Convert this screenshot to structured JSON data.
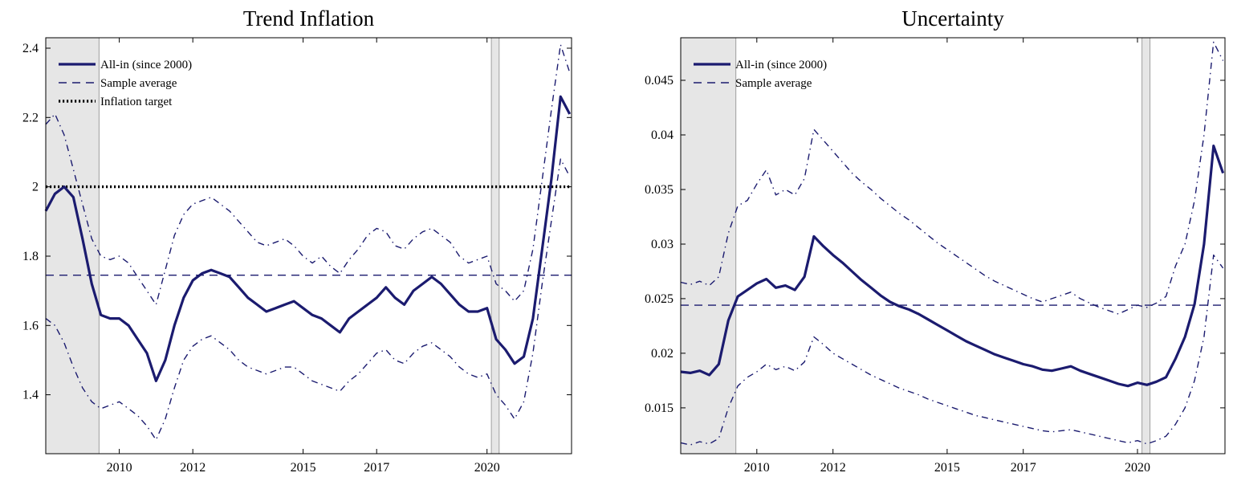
{
  "figure": {
    "background": "#ffffff",
    "accent_color": "#1b1b6f",
    "target_line_color": "#000000",
    "recession_fill": "#e6e6e6",
    "recession_edge": "#9e9e9e"
  },
  "chart_data": [
    {
      "type": "line",
      "title": "Trend Inflation",
      "xlim": [
        2008,
        2022.3
      ],
      "ylim": [
        1.23,
        2.43
      ],
      "grid": false,
      "legend_position": "top-left-inside",
      "xticks": [
        {
          "v": 2010,
          "label": "2010"
        },
        {
          "v": 2012,
          "label": "2012"
        },
        {
          "v": 2015,
          "label": "2015"
        },
        {
          "v": 2017,
          "label": "2017"
        },
        {
          "v": 2020,
          "label": "2020"
        }
      ],
      "yticks": [
        {
          "v": 1.4,
          "label": "1.4"
        },
        {
          "v": 1.6,
          "label": "1.6"
        },
        {
          "v": 1.8,
          "label": "1.8"
        },
        {
          "v": 2.0,
          "label": "2"
        },
        {
          "v": 2.2,
          "label": "2.2"
        },
        {
          "v": 2.4,
          "label": "2.4"
        }
      ],
      "recessions": [
        {
          "from": 2008.0,
          "to": 2009.45
        },
        {
          "from": 2020.12,
          "to": 2020.33
        }
      ],
      "recession_fill": "#e6e6e6",
      "recession_edge": "#9e9e9e",
      "hlines": [
        {
          "name": "sample-average",
          "label": "Sample average",
          "value": 1.745,
          "style": "dashed",
          "color": "#1b1b6f",
          "width": 1.4
        },
        {
          "name": "inflation-target",
          "label": "Inflation target",
          "value": 2.0,
          "style": "dotted",
          "color": "#000000",
          "width": 3.4
        }
      ],
      "x": [
        2008.0,
        2008.25,
        2008.5,
        2008.75,
        2009.0,
        2009.25,
        2009.5,
        2009.75,
        2010.0,
        2010.25,
        2010.5,
        2010.75,
        2011.0,
        2011.25,
        2011.5,
        2011.75,
        2012.0,
        2012.25,
        2012.5,
        2012.75,
        2013.0,
        2013.25,
        2013.5,
        2013.75,
        2014.0,
        2014.25,
        2014.5,
        2014.75,
        2015.0,
        2015.25,
        2015.5,
        2015.75,
        2016.0,
        2016.25,
        2016.5,
        2016.75,
        2017.0,
        2017.25,
        2017.5,
        2017.75,
        2018.0,
        2018.25,
        2018.5,
        2018.75,
        2019.0,
        2019.25,
        2019.5,
        2019.75,
        2020.0,
        2020.25,
        2020.5,
        2020.75,
        2021.0,
        2021.25,
        2021.5,
        2021.75,
        2022.0,
        2022.25
      ],
      "series": [
        {
          "name": "all-in-since-2000",
          "label": "All-in (since 2000)",
          "style": "solid",
          "color": "#1b1b6f",
          "width": 3.2,
          "values": [
            1.93,
            1.98,
            2.0,
            1.97,
            1.85,
            1.72,
            1.63,
            1.62,
            1.62,
            1.6,
            1.56,
            1.52,
            1.44,
            1.5,
            1.6,
            1.68,
            1.73,
            1.75,
            1.76,
            1.75,
            1.74,
            1.71,
            1.68,
            1.66,
            1.64,
            1.65,
            1.66,
            1.67,
            1.65,
            1.63,
            1.62,
            1.6,
            1.58,
            1.62,
            1.64,
            1.66,
            1.68,
            1.71,
            1.68,
            1.66,
            1.7,
            1.72,
            1.74,
            1.72,
            1.69,
            1.66,
            1.64,
            1.64,
            1.65,
            1.56,
            1.53,
            1.49,
            1.51,
            1.62,
            1.82,
            2.02,
            2.26,
            2.21
          ]
        },
        {
          "name": "upper-band",
          "label": "",
          "style": "dashdot",
          "color": "#1b1b6f",
          "width": 1.4,
          "values": [
            2.18,
            2.21,
            2.15,
            2.05,
            1.95,
            1.85,
            1.8,
            1.79,
            1.8,
            1.78,
            1.74,
            1.7,
            1.66,
            1.76,
            1.86,
            1.92,
            1.95,
            1.96,
            1.97,
            1.95,
            1.93,
            1.9,
            1.87,
            1.84,
            1.83,
            1.84,
            1.85,
            1.83,
            1.8,
            1.78,
            1.8,
            1.77,
            1.75,
            1.79,
            1.82,
            1.86,
            1.88,
            1.87,
            1.83,
            1.82,
            1.85,
            1.87,
            1.88,
            1.86,
            1.84,
            1.8,
            1.78,
            1.79,
            1.8,
            1.72,
            1.7,
            1.67,
            1.7,
            1.82,
            2.02,
            2.22,
            2.41,
            2.33
          ]
        },
        {
          "name": "lower-band",
          "label": "",
          "style": "dashdot",
          "color": "#1b1b6f",
          "width": 1.4,
          "values": [
            1.62,
            1.6,
            1.55,
            1.48,
            1.42,
            1.38,
            1.36,
            1.37,
            1.38,
            1.36,
            1.34,
            1.31,
            1.27,
            1.33,
            1.42,
            1.5,
            1.54,
            1.56,
            1.57,
            1.55,
            1.53,
            1.5,
            1.48,
            1.47,
            1.46,
            1.47,
            1.48,
            1.48,
            1.46,
            1.44,
            1.43,
            1.42,
            1.41,
            1.44,
            1.46,
            1.49,
            1.52,
            1.53,
            1.5,
            1.49,
            1.52,
            1.54,
            1.55,
            1.53,
            1.51,
            1.48,
            1.46,
            1.45,
            1.46,
            1.4,
            1.37,
            1.33,
            1.38,
            1.52,
            1.72,
            1.9,
            2.08,
            2.03
          ]
        }
      ],
      "legend": [
        {
          "label": "All-in (since 2000)",
          "style": "solid",
          "color": "#1b1b6f",
          "width": 3.2
        },
        {
          "label": "Sample average",
          "style": "dashed",
          "color": "#1b1b6f",
          "width": 1.4
        },
        {
          "label": "Inflation target",
          "style": "dotted",
          "color": "#000000",
          "width": 3.4
        }
      ]
    },
    {
      "type": "line",
      "title": "Uncertainty",
      "xlim": [
        2008,
        2022.3
      ],
      "ylim": [
        0.0108,
        0.0489
      ],
      "grid": false,
      "legend_position": "top-left-inside",
      "xticks": [
        {
          "v": 2010,
          "label": "2010"
        },
        {
          "v": 2012,
          "label": "2012"
        },
        {
          "v": 2015,
          "label": "2015"
        },
        {
          "v": 2017,
          "label": "2017"
        },
        {
          "v": 2020,
          "label": "2020"
        }
      ],
      "yticks": [
        {
          "v": 0.015,
          "label": "0.015"
        },
        {
          "v": 0.02,
          "label": "0.02"
        },
        {
          "v": 0.025,
          "label": "0.025"
        },
        {
          "v": 0.03,
          "label": "0.03"
        },
        {
          "v": 0.035,
          "label": "0.035"
        },
        {
          "v": 0.04,
          "label": "0.04"
        },
        {
          "v": 0.045,
          "label": "0.045"
        }
      ],
      "recessions": [
        {
          "from": 2008.0,
          "to": 2009.45
        },
        {
          "from": 2020.12,
          "to": 2020.33
        }
      ],
      "recession_fill": "#e6e6e6",
      "recession_edge": "#9e9e9e",
      "hlines": [
        {
          "name": "sample-average",
          "label": "Sample average",
          "value": 0.0244,
          "style": "dashed",
          "color": "#1b1b6f",
          "width": 1.4
        }
      ],
      "x": [
        2008.0,
        2008.25,
        2008.5,
        2008.75,
        2009.0,
        2009.25,
        2009.5,
        2009.75,
        2010.0,
        2010.25,
        2010.5,
        2010.75,
        2011.0,
        2011.25,
        2011.5,
        2011.75,
        2012.0,
        2012.25,
        2012.5,
        2012.75,
        2013.0,
        2013.25,
        2013.5,
        2013.75,
        2014.0,
        2014.25,
        2014.5,
        2014.75,
        2015.0,
        2015.25,
        2015.5,
        2015.75,
        2016.0,
        2016.25,
        2016.5,
        2016.75,
        2017.0,
        2017.25,
        2017.5,
        2017.75,
        2018.0,
        2018.25,
        2018.5,
        2018.75,
        2019.0,
        2019.25,
        2019.5,
        2019.75,
        2020.0,
        2020.25,
        2020.5,
        2020.75,
        2021.0,
        2021.25,
        2021.5,
        2021.75,
        2022.0,
        2022.25
      ],
      "series": [
        {
          "name": "all-in-since-2000",
          "label": "All-in (since 2000)",
          "style": "solid",
          "color": "#1b1b6f",
          "width": 3.2,
          "values": [
            0.0183,
            0.0182,
            0.0184,
            0.018,
            0.019,
            0.023,
            0.0252,
            0.0258,
            0.0264,
            0.0268,
            0.026,
            0.0262,
            0.0258,
            0.027,
            0.0307,
            0.0298,
            0.029,
            0.0283,
            0.0275,
            0.0267,
            0.026,
            0.0253,
            0.0247,
            0.0243,
            0.024,
            0.0236,
            0.0231,
            0.0226,
            0.0221,
            0.0216,
            0.0211,
            0.0207,
            0.0203,
            0.0199,
            0.0196,
            0.0193,
            0.019,
            0.0188,
            0.0185,
            0.0184,
            0.0186,
            0.0188,
            0.0184,
            0.0181,
            0.0178,
            0.0175,
            0.0172,
            0.017,
            0.0173,
            0.0171,
            0.0174,
            0.0178,
            0.0195,
            0.0215,
            0.0245,
            0.03,
            0.039,
            0.0365
          ]
        },
        {
          "name": "upper-band",
          "label": "",
          "style": "dashdot",
          "color": "#1b1b6f",
          "width": 1.4,
          "values": [
            0.0265,
            0.0263,
            0.0266,
            0.0262,
            0.027,
            0.031,
            0.0335,
            0.034,
            0.0355,
            0.0368,
            0.0345,
            0.035,
            0.0345,
            0.036,
            0.0405,
            0.0395,
            0.0385,
            0.0375,
            0.0365,
            0.0357,
            0.035,
            0.0342,
            0.0335,
            0.0328,
            0.0322,
            0.0315,
            0.0308,
            0.0301,
            0.0295,
            0.0289,
            0.0283,
            0.0277,
            0.0271,
            0.0266,
            0.0262,
            0.0258,
            0.0254,
            0.025,
            0.0247,
            0.025,
            0.0253,
            0.0256,
            0.025,
            0.0246,
            0.0242,
            0.0239,
            0.0236,
            0.024,
            0.0244,
            0.0242,
            0.0246,
            0.0252,
            0.028,
            0.03,
            0.034,
            0.04,
            0.0485,
            0.0468
          ]
        },
        {
          "name": "lower-band",
          "label": "",
          "style": "dashdot",
          "color": "#1b1b6f",
          "width": 1.4,
          "values": [
            0.0118,
            0.0116,
            0.0119,
            0.0117,
            0.0122,
            0.015,
            0.017,
            0.0178,
            0.0183,
            0.019,
            0.0185,
            0.0188,
            0.0184,
            0.0192,
            0.0215,
            0.0208,
            0.02,
            0.0195,
            0.019,
            0.0185,
            0.018,
            0.0176,
            0.0172,
            0.0168,
            0.0165,
            0.0162,
            0.0158,
            0.0155,
            0.0152,
            0.0149,
            0.0146,
            0.0143,
            0.0141,
            0.0139,
            0.0137,
            0.0135,
            0.0133,
            0.0131,
            0.0129,
            0.0128,
            0.0129,
            0.013,
            0.0128,
            0.0126,
            0.0124,
            0.0122,
            0.012,
            0.0118,
            0.012,
            0.0117,
            0.012,
            0.0124,
            0.0135,
            0.015,
            0.0175,
            0.0215,
            0.029,
            0.0278
          ]
        }
      ],
      "legend": [
        {
          "label": "All-in (since 2000)",
          "style": "solid",
          "color": "#1b1b6f",
          "width": 3.2
        },
        {
          "label": "Sample average",
          "style": "dashed",
          "color": "#1b1b6f",
          "width": 1.4
        }
      ]
    }
  ]
}
